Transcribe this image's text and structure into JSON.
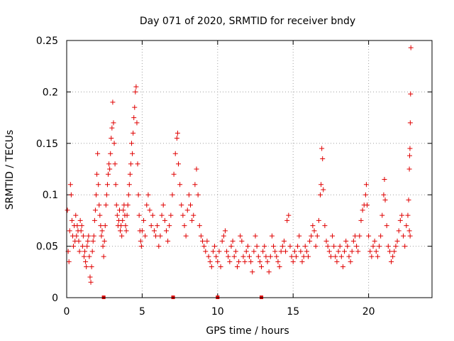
{
  "chart_data": {
    "type": "scatter",
    "title": "Day 071 of 2020, SRMTID for receiver bndy",
    "xlabel": "GPS time / hours",
    "ylabel": "SRMTID / TECUs",
    "xlim": [
      0,
      24.2
    ],
    "ylim": [
      0,
      0.25
    ],
    "grid": true,
    "marker": "+",
    "x_ticks": [
      0,
      5,
      10,
      15,
      20
    ],
    "x_tick_labels": [
      "0",
      "5",
      "10",
      "15",
      "20"
    ],
    "y_ticks": [
      0,
      0.05,
      0.1,
      0.15,
      0.2,
      0.25
    ],
    "y_tick_labels": [
      "0",
      "0.05",
      "0.1",
      "0.15",
      "0.2",
      "0.25"
    ],
    "series": [
      {
        "name": "SRMTID",
        "color": "#e00000",
        "points": [
          [
            0.05,
            0.085
          ],
          [
            0.1,
            0.045
          ],
          [
            0.15,
            0.035
          ],
          [
            0.2,
            0.065
          ],
          [
            0.25,
            0.11
          ],
          [
            0.3,
            0.1
          ],
          [
            0.35,
            0.075
          ],
          [
            0.4,
            0.06
          ],
          [
            0.45,
            0.05
          ],
          [
            0.5,
            0.07
          ],
          [
            0.55,
            0.055
          ],
          [
            0.6,
            0.08
          ],
          [
            0.65,
            0.06
          ],
          [
            0.7,
            0.07
          ],
          [
            0.75,
            0.065
          ],
          [
            0.8,
            0.055
          ],
          [
            0.85,
            0.045
          ],
          [
            0.9,
            0.075
          ],
          [
            0.95,
            0.065
          ],
          [
            1.0,
            0.07
          ],
          [
            1.05,
            0.05
          ],
          [
            1.1,
            0.06
          ],
          [
            1.15,
            0.04
          ],
          [
            1.2,
            0.045
          ],
          [
            1.25,
            0.035
          ],
          [
            1.3,
            0.03
          ],
          [
            1.35,
            0.05
          ],
          [
            1.4,
            0.055
          ],
          [
            1.45,
            0.06
          ],
          [
            1.5,
            0.04
          ],
          [
            1.55,
            0.02
          ],
          [
            1.6,
            0.015
          ],
          [
            1.65,
            0.03
          ],
          [
            1.7,
            0.045
          ],
          [
            1.75,
            0.055
          ],
          [
            1.8,
            0.06
          ],
          [
            1.85,
            0.075
          ],
          [
            1.9,
            0.085
          ],
          [
            1.95,
            0.1
          ],
          [
            2.0,
            0.12
          ],
          [
            2.05,
            0.14
          ],
          [
            2.1,
            0.11
          ],
          [
            2.15,
            0.09
          ],
          [
            2.2,
            0.08
          ],
          [
            2.25,
            0.07
          ],
          [
            2.3,
            0.06
          ],
          [
            2.35,
            0.065
          ],
          [
            2.4,
            0.05
          ],
          [
            2.45,
            0.04
          ],
          [
            2.5,
            0.055
          ],
          [
            2.55,
            0.07
          ],
          [
            2.6,
            0.09
          ],
          [
            2.65,
            0.1
          ],
          [
            2.7,
            0.11
          ],
          [
            2.75,
            0.12
          ],
          [
            2.8,
            0.13
          ],
          [
            2.85,
            0.125
          ],
          [
            2.9,
            0.14
          ],
          [
            2.95,
            0.155
          ],
          [
            3.0,
            0.165
          ],
          [
            3.05,
            0.19
          ],
          [
            3.1,
            0.17
          ],
          [
            3.15,
            0.15
          ],
          [
            3.2,
            0.13
          ],
          [
            3.25,
            0.11
          ],
          [
            3.3,
            0.09
          ],
          [
            3.35,
            0.08
          ],
          [
            3.4,
            0.07
          ],
          [
            3.45,
            0.075
          ],
          [
            3.5,
            0.085
          ],
          [
            3.55,
            0.065
          ],
          [
            3.6,
            0.07
          ],
          [
            3.65,
            0.06
          ],
          [
            3.7,
            0.075
          ],
          [
            3.75,
            0.085
          ],
          [
            3.8,
            0.09
          ],
          [
            3.85,
            0.08
          ],
          [
            3.9,
            0.07
          ],
          [
            3.95,
            0.065
          ],
          [
            4.0,
            0.08
          ],
          [
            4.05,
            0.09
          ],
          [
            4.1,
            0.1
          ],
          [
            4.15,
            0.11
          ],
          [
            4.2,
            0.12
          ],
          [
            4.25,
            0.13
          ],
          [
            4.3,
            0.15
          ],
          [
            4.35,
            0.14
          ],
          [
            4.4,
            0.16
          ],
          [
            4.45,
            0.175
          ],
          [
            4.5,
            0.185
          ],
          [
            4.55,
            0.2
          ],
          [
            4.6,
            0.205
          ],
          [
            4.65,
            0.17
          ],
          [
            4.7,
            0.13
          ],
          [
            4.75,
            0.1
          ],
          [
            4.8,
            0.08
          ],
          [
            4.85,
            0.065
          ],
          [
            4.9,
            0.055
          ],
          [
            4.95,
            0.05
          ],
          [
            5.0,
            0.065
          ],
          [
            5.1,
            0.075
          ],
          [
            5.2,
            0.06
          ],
          [
            5.3,
            0.09
          ],
          [
            5.4,
            0.1
          ],
          [
            5.5,
            0.085
          ],
          [
            5.6,
            0.07
          ],
          [
            5.7,
            0.08
          ],
          [
            5.8,
            0.065
          ],
          [
            5.9,
            0.06
          ],
          [
            6.0,
            0.07
          ],
          [
            6.1,
            0.05
          ],
          [
            6.2,
            0.06
          ],
          [
            6.3,
            0.08
          ],
          [
            6.4,
            0.09
          ],
          [
            6.5,
            0.075
          ],
          [
            6.6,
            0.065
          ],
          [
            6.7,
            0.055
          ],
          [
            6.8,
            0.07
          ],
          [
            6.9,
            0.08
          ],
          [
            7.0,
            0.1
          ],
          [
            7.1,
            0.12
          ],
          [
            7.2,
            0.14
          ],
          [
            7.3,
            0.155
          ],
          [
            7.35,
            0.16
          ],
          [
            7.4,
            0.13
          ],
          [
            7.5,
            0.11
          ],
          [
            7.6,
            0.09
          ],
          [
            7.7,
            0.08
          ],
          [
            7.8,
            0.07
          ],
          [
            7.9,
            0.06
          ],
          [
            8.0,
            0.085
          ],
          [
            8.1,
            0.1
          ],
          [
            8.2,
            0.09
          ],
          [
            8.3,
            0.075
          ],
          [
            8.4,
            0.08
          ],
          [
            8.5,
            0.11
          ],
          [
            8.6,
            0.125
          ],
          [
            8.7,
            0.1
          ],
          [
            8.8,
            0.07
          ],
          [
            8.9,
            0.06
          ],
          [
            9.0,
            0.055
          ],
          [
            9.1,
            0.05
          ],
          [
            9.2,
            0.045
          ],
          [
            9.3,
            0.055
          ],
          [
            9.4,
            0.04
          ],
          [
            9.5,
            0.035
          ],
          [
            9.6,
            0.03
          ],
          [
            9.7,
            0.045
          ],
          [
            9.8,
            0.05
          ],
          [
            9.9,
            0.04
          ],
          [
            10.0,
            0.035
          ],
          [
            10.1,
            0.045
          ],
          [
            10.2,
            0.03
          ],
          [
            10.3,
            0.055
          ],
          [
            10.4,
            0.06
          ],
          [
            10.5,
            0.065
          ],
          [
            10.6,
            0.045
          ],
          [
            10.7,
            0.04
          ],
          [
            10.8,
            0.035
          ],
          [
            10.9,
            0.05
          ],
          [
            11.0,
            0.055
          ],
          [
            11.1,
            0.04
          ],
          [
            11.2,
            0.045
          ],
          [
            11.3,
            0.03
          ],
          [
            11.4,
            0.035
          ],
          [
            11.5,
            0.06
          ],
          [
            11.6,
            0.055
          ],
          [
            11.7,
            0.04
          ],
          [
            11.8,
            0.035
          ],
          [
            11.9,
            0.045
          ],
          [
            12.0,
            0.05
          ],
          [
            12.1,
            0.04
          ],
          [
            12.2,
            0.035
          ],
          [
            12.3,
            0.025
          ],
          [
            12.4,
            0.045
          ],
          [
            12.5,
            0.06
          ],
          [
            12.6,
            0.05
          ],
          [
            12.7,
            0.04
          ],
          [
            12.8,
            0.035
          ],
          [
            12.9,
            0.03
          ],
          [
            13.0,
            0.045
          ],
          [
            13.1,
            0.05
          ],
          [
            13.2,
            0.04
          ],
          [
            13.3,
            0.035
          ],
          [
            13.4,
            0.025
          ],
          [
            13.5,
            0.04
          ],
          [
            13.6,
            0.06
          ],
          [
            13.7,
            0.05
          ],
          [
            13.8,
            0.045
          ],
          [
            13.9,
            0.04
          ],
          [
            14.0,
            0.035
          ],
          [
            14.1,
            0.03
          ],
          [
            14.2,
            0.045
          ],
          [
            14.3,
            0.05
          ],
          [
            14.4,
            0.055
          ],
          [
            14.5,
            0.045
          ],
          [
            14.6,
            0.075
          ],
          [
            14.7,
            0.08
          ],
          [
            14.8,
            0.05
          ],
          [
            14.9,
            0.04
          ],
          [
            15.0,
            0.035
          ],
          [
            15.1,
            0.045
          ],
          [
            15.2,
            0.04
          ],
          [
            15.3,
            0.05
          ],
          [
            15.4,
            0.06
          ],
          [
            15.5,
            0.045
          ],
          [
            15.6,
            0.035
          ],
          [
            15.7,
            0.04
          ],
          [
            15.8,
            0.05
          ],
          [
            15.9,
            0.045
          ],
          [
            16.0,
            0.04
          ],
          [
            16.1,
            0.055
          ],
          [
            16.2,
            0.06
          ],
          [
            16.3,
            0.07
          ],
          [
            16.4,
            0.065
          ],
          [
            16.5,
            0.05
          ],
          [
            16.6,
            0.06
          ],
          [
            16.7,
            0.075
          ],
          [
            16.8,
            0.1
          ],
          [
            16.85,
            0.11
          ],
          [
            16.9,
            0.145
          ],
          [
            16.95,
            0.135
          ],
          [
            17.0,
            0.105
          ],
          [
            17.1,
            0.07
          ],
          [
            17.2,
            0.055
          ],
          [
            17.3,
            0.05
          ],
          [
            17.4,
            0.045
          ],
          [
            17.5,
            0.04
          ],
          [
            17.6,
            0.06
          ],
          [
            17.7,
            0.05
          ],
          [
            17.8,
            0.04
          ],
          [
            17.9,
            0.035
          ],
          [
            18.0,
            0.045
          ],
          [
            18.1,
            0.05
          ],
          [
            18.2,
            0.04
          ],
          [
            18.3,
            0.03
          ],
          [
            18.4,
            0.045
          ],
          [
            18.5,
            0.055
          ],
          [
            18.6,
            0.05
          ],
          [
            18.7,
            0.04
          ],
          [
            18.8,
            0.035
          ],
          [
            18.9,
            0.045
          ],
          [
            19.0,
            0.055
          ],
          [
            19.1,
            0.06
          ],
          [
            19.2,
            0.05
          ],
          [
            19.3,
            0.045
          ],
          [
            19.4,
            0.06
          ],
          [
            19.5,
            0.075
          ],
          [
            19.6,
            0.085
          ],
          [
            19.7,
            0.09
          ],
          [
            19.8,
            0.1
          ],
          [
            19.85,
            0.11
          ],
          [
            19.9,
            0.09
          ],
          [
            20.0,
            0.06
          ],
          [
            20.1,
            0.045
          ],
          [
            20.2,
            0.04
          ],
          [
            20.3,
            0.05
          ],
          [
            20.4,
            0.055
          ],
          [
            20.5,
            0.045
          ],
          [
            20.6,
            0.04
          ],
          [
            20.7,
            0.05
          ],
          [
            20.8,
            0.06
          ],
          [
            20.9,
            0.08
          ],
          [
            21.0,
            0.1
          ],
          [
            21.05,
            0.115
          ],
          [
            21.1,
            0.095
          ],
          [
            21.2,
            0.07
          ],
          [
            21.3,
            0.05
          ],
          [
            21.4,
            0.045
          ],
          [
            21.5,
            0.035
          ],
          [
            21.6,
            0.04
          ],
          [
            21.7,
            0.045
          ],
          [
            21.8,
            0.05
          ],
          [
            21.9,
            0.055
          ],
          [
            22.0,
            0.065
          ],
          [
            22.1,
            0.075
          ],
          [
            22.2,
            0.08
          ],
          [
            22.3,
            0.06
          ],
          [
            22.4,
            0.05
          ],
          [
            22.5,
            0.07
          ],
          [
            22.6,
            0.08
          ],
          [
            22.65,
            0.095
          ],
          [
            22.7,
            0.125
          ],
          [
            22.72,
            0.138
          ],
          [
            22.74,
            0.145
          ],
          [
            22.76,
            0.17
          ],
          [
            22.78,
            0.198
          ],
          [
            22.8,
            0.243
          ],
          [
            22.7,
            0.065
          ],
          [
            22.75,
            0.06
          ]
        ]
      }
    ],
    "axis_markers_x": [
      2.45,
      7.05,
      10.0,
      12.9
    ]
  }
}
